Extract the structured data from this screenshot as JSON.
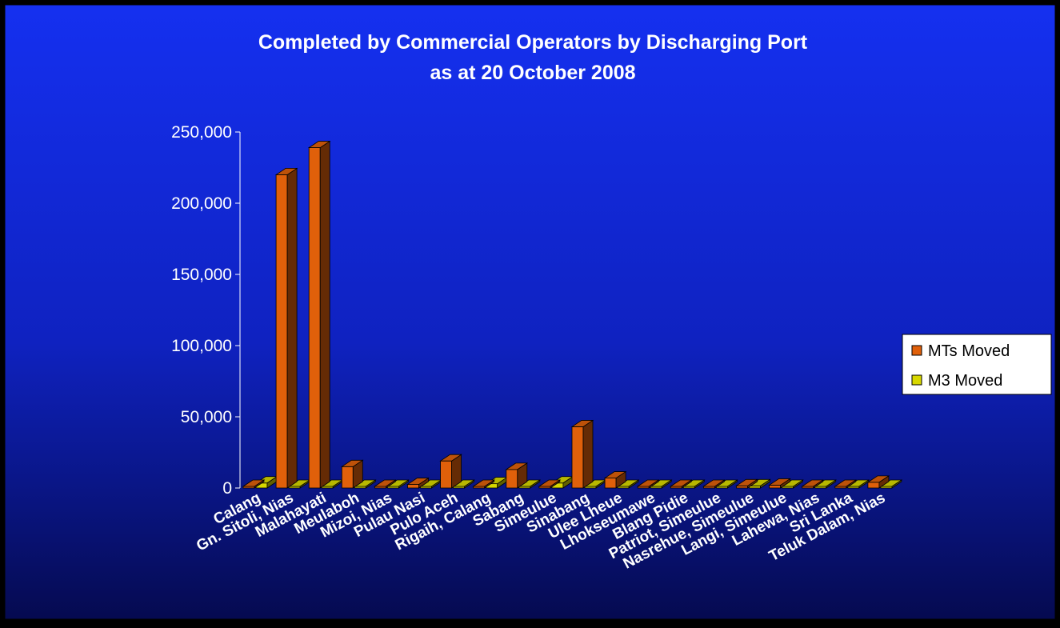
{
  "chart_data": {
    "type": "bar",
    "title": "Completed by Commercial Operators by Discharging Port",
    "subtitle": "as at 20 October 2008",
    "categories": [
      "Calang",
      "Gn. Sitoli, Nias",
      "Malahayati",
      "Meulaboh",
      "Mizoi, Nias",
      "Pulau Nasi",
      "Pulo Aceh",
      "Rigaih, Calang",
      "Sabang",
      "Simeulue",
      "Sinabang",
      "Ulee Lheue",
      "Lhokseumawe",
      "Blang Pidie",
      "Patriot, Simeulue",
      "Nasrehue, Simeulue",
      "Langi, Simeulue",
      "Lahewa, Nias",
      "Sri Lanka",
      "Teluk Dalam, Nias"
    ],
    "series": [
      {
        "name": "MTs Moved",
        "values": [
          300,
          220000,
          239000,
          15000,
          300,
          2500,
          19000,
          300,
          13000,
          400,
          43000,
          7000,
          500,
          300,
          300,
          1500,
          2000,
          500,
          300,
          4000
        ]
      },
      {
        "name": "M3 Moved",
        "values": [
          3500,
          0,
          0,
          0,
          0,
          0,
          0,
          3000,
          0,
          3500,
          500,
          0,
          0,
          0,
          0,
          1500,
          0,
          0,
          0,
          0
        ]
      }
    ],
    "ylim": [
      0,
      250000
    ],
    "yticks": [
      "0",
      "50,000",
      "100,000",
      "150,000",
      "200,000",
      "250,000"
    ],
    "legend_position": "right",
    "grid": false,
    "style": "3d-column",
    "colors": {
      "background_top": "#1530F0",
      "background_bottom": "#050A50",
      "mts": "#E0600A",
      "m3": "#D8D800",
      "text": "#FFFFFF",
      "legend_bg": "#FFFFFF",
      "legend_text": "#000000"
    }
  }
}
